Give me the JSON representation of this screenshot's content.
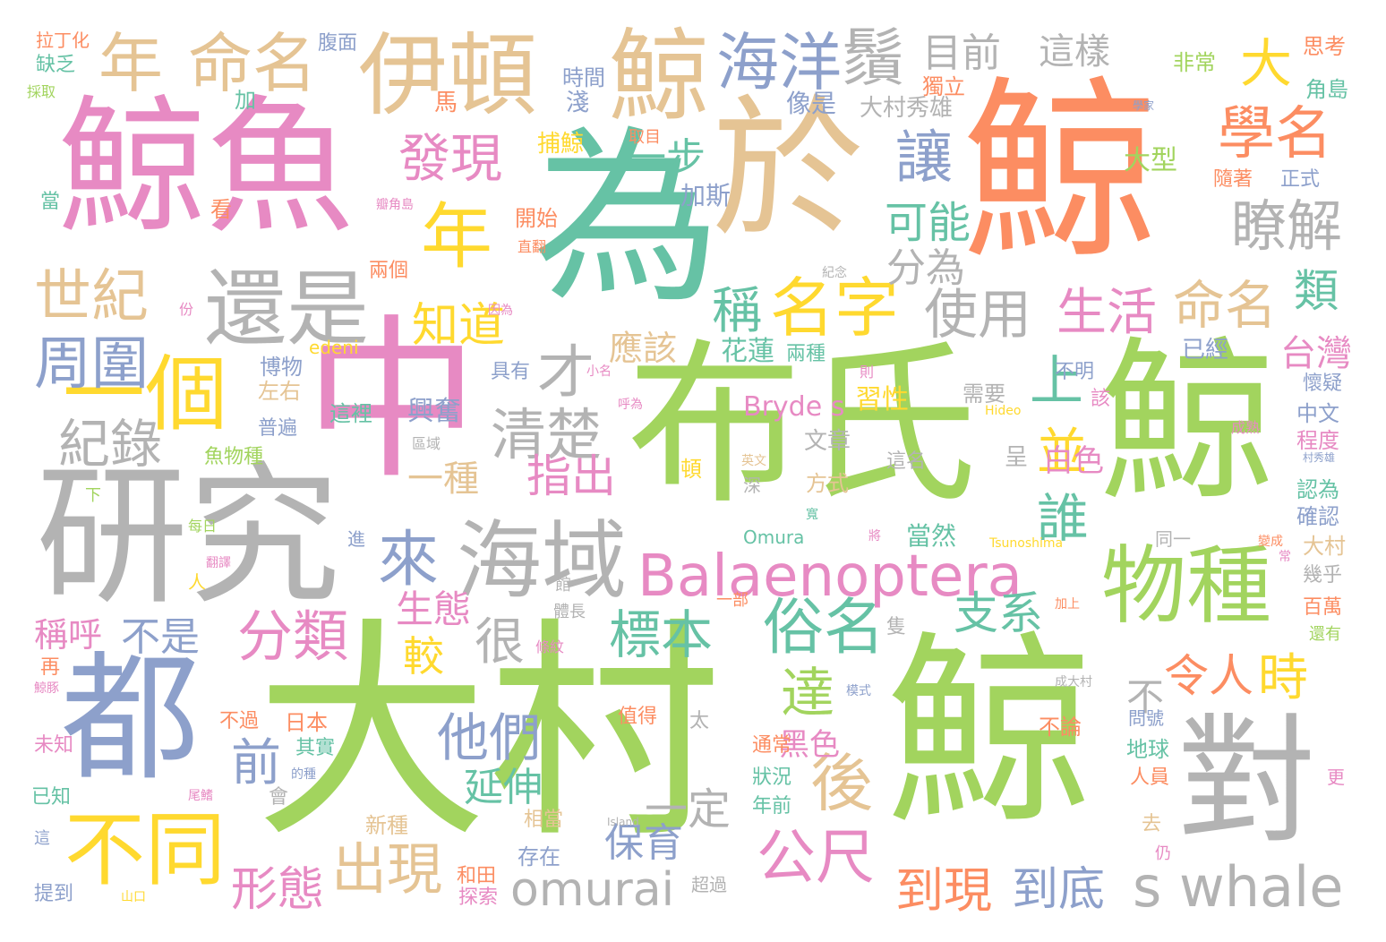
{
  "palette": {
    "green": "#a2d45e",
    "orange": "#fc8d62",
    "pink": "#e78ac3",
    "teal": "#66c2a5",
    "tan": "#e5c494",
    "gray": "#b3b3b3",
    "blue": "#8da0cb",
    "yellow": "#ffd92f"
  },
  "words": [
    {
      "text": "鯨",
      "color": "orange"
    },
    {
      "text": "大村",
      "color": "green"
    },
    {
      "text": "布氏",
      "color": "green"
    },
    {
      "text": "鯨",
      "color": "green"
    },
    {
      "text": "鯨",
      "color": "green"
    },
    {
      "text": "為",
      "color": "teal"
    },
    {
      "text": "於",
      "color": "tan"
    },
    {
      "text": "鯨魚",
      "color": "pink"
    },
    {
      "text": "中",
      "color": "pink"
    },
    {
      "text": "研究",
      "color": "gray"
    },
    {
      "text": "都",
      "color": "blue"
    },
    {
      "text": "對",
      "color": "gray"
    },
    {
      "text": "伊頓",
      "color": "tan"
    },
    {
      "text": "鯨",
      "color": "tan"
    },
    {
      "text": "還是",
      "color": "gray"
    },
    {
      "text": "海域",
      "color": "gray"
    },
    {
      "text": "Balaenoptera",
      "color": "pink"
    },
    {
      "text": "物種",
      "color": "green"
    },
    {
      "text": "s whale",
      "color": "gray"
    },
    {
      "text": "omurai",
      "color": "gray"
    },
    {
      "text": "一個",
      "color": "yellow"
    },
    {
      "text": "不同",
      "color": "yellow"
    },
    {
      "text": "年",
      "color": "yellow"
    },
    {
      "text": "命名",
      "color": "tan"
    },
    {
      "text": "年",
      "color": "tan"
    },
    {
      "text": "海洋",
      "color": "blue"
    },
    {
      "text": "鬚",
      "color": "gray"
    },
    {
      "text": "目前",
      "color": "gray"
    },
    {
      "text": "這樣",
      "color": "gray"
    },
    {
      "text": "大",
      "color": "yellow"
    },
    {
      "text": "學名",
      "color": "orange"
    },
    {
      "text": "發現",
      "color": "pink"
    },
    {
      "text": "讓",
      "color": "blue"
    },
    {
      "text": "瞭解",
      "color": "gray"
    },
    {
      "text": "世紀",
      "color": "tan"
    },
    {
      "text": "名字",
      "color": "yellow"
    },
    {
      "text": "生活",
      "color": "pink"
    },
    {
      "text": "命名",
      "color": "tan"
    },
    {
      "text": "周圍",
      "color": "blue"
    },
    {
      "text": "使用",
      "color": "gray"
    },
    {
      "text": "清楚",
      "color": "gray"
    },
    {
      "text": "紀錄",
      "color": "gray"
    },
    {
      "text": "來",
      "color": "blue"
    },
    {
      "text": "俗名",
      "color": "teal"
    },
    {
      "text": "分類",
      "color": "pink"
    },
    {
      "text": "出現",
      "color": "tan"
    },
    {
      "text": "公尺",
      "color": "pink"
    },
    {
      "text": "後",
      "color": "tan"
    },
    {
      "text": "他們",
      "color": "blue"
    },
    {
      "text": "時",
      "color": "yellow"
    },
    {
      "text": "令人",
      "color": "orange"
    },
    {
      "text": "到現",
      "color": "orange"
    },
    {
      "text": "到底",
      "color": "blue"
    },
    {
      "text": "標本",
      "color": "teal"
    },
    {
      "text": "知道",
      "color": "yellow"
    },
    {
      "text": "稱",
      "color": "teal"
    },
    {
      "text": "可能",
      "color": "teal"
    },
    {
      "text": "分為",
      "color": "gray"
    },
    {
      "text": "一步",
      "color": "teal"
    },
    {
      "text": "類",
      "color": "teal"
    },
    {
      "text": "台灣",
      "color": "pink"
    },
    {
      "text": "支系",
      "color": "teal"
    },
    {
      "text": "誰",
      "color": "teal"
    },
    {
      "text": "並",
      "color": "yellow"
    },
    {
      "text": "上",
      "color": "teal"
    },
    {
      "text": "才",
      "color": "gray"
    },
    {
      "text": "很",
      "color": "gray"
    },
    {
      "text": "應該",
      "color": "tan"
    },
    {
      "text": "指出",
      "color": "pink"
    },
    {
      "text": "一種",
      "color": "tan"
    },
    {
      "text": "不是",
      "color": "blue"
    },
    {
      "text": "前",
      "color": "blue"
    },
    {
      "text": "形態",
      "color": "pink"
    },
    {
      "text": "生態",
      "color": "pink"
    },
    {
      "text": "較",
      "color": "yellow"
    },
    {
      "text": "延伸",
      "color": "teal"
    },
    {
      "text": "保育",
      "color": "blue"
    },
    {
      "text": "一定",
      "color": "gray"
    },
    {
      "text": "達",
      "color": "green"
    },
    {
      "text": "稱呼",
      "color": "pink"
    },
    {
      "text": "黑色",
      "color": "pink"
    },
    {
      "text": "不",
      "color": "gray"
    },
    {
      "text": "Bryde s",
      "color": "pink"
    },
    {
      "text": "加斯",
      "color": "blue"
    },
    {
      "text": "大型",
      "color": "green"
    },
    {
      "text": "花蓮",
      "color": "teal"
    },
    {
      "text": "白色",
      "color": "pink"
    },
    {
      "text": "習性",
      "color": "yellow"
    },
    {
      "text": "興奮",
      "color": "blue"
    },
    {
      "text": "拉丁化",
      "color": "orange"
    },
    {
      "text": "缺乏",
      "color": "teal"
    },
    {
      "text": "採取",
      "color": "green"
    },
    {
      "text": "腹面",
      "color": "blue"
    },
    {
      "text": "時間",
      "color": "blue"
    },
    {
      "text": "淺",
      "color": "blue"
    },
    {
      "text": "加",
      "color": "teal"
    },
    {
      "text": "馬",
      "color": "orange"
    },
    {
      "text": "像是",
      "color": "blue"
    },
    {
      "text": "大村秀雄",
      "color": "gray"
    },
    {
      "text": "獨立",
      "color": "orange"
    },
    {
      "text": "非常",
      "color": "green"
    },
    {
      "text": "思考",
      "color": "orange"
    },
    {
      "text": "角島",
      "color": "teal"
    },
    {
      "text": "學家",
      "color": "blue"
    },
    {
      "text": "捕鯨",
      "color": "yellow"
    },
    {
      "text": "取目",
      "color": "orange"
    },
    {
      "text": "隨著",
      "color": "orange"
    },
    {
      "text": "正式",
      "color": "blue"
    },
    {
      "text": "當",
      "color": "teal"
    },
    {
      "text": "看",
      "color": "orange"
    },
    {
      "text": "瓣角島",
      "color": "pink"
    },
    {
      "text": "開始",
      "color": "orange"
    },
    {
      "text": "直翻",
      "color": "orange"
    },
    {
      "text": "兩個",
      "color": "orange"
    },
    {
      "text": "紀念",
      "color": "gray"
    },
    {
      "text": "份",
      "color": "pink"
    },
    {
      "text": "因為",
      "color": "pink"
    },
    {
      "text": "edeni",
      "color": "yellow"
    },
    {
      "text": "已經",
      "color": "blue"
    },
    {
      "text": "博物",
      "color": "blue"
    },
    {
      "text": "左右",
      "color": "tan"
    },
    {
      "text": "小名",
      "color": "pink"
    },
    {
      "text": "具有",
      "color": "blue"
    },
    {
      "text": "兩種",
      "color": "teal"
    },
    {
      "text": "不明",
      "color": "blue"
    },
    {
      "text": "則",
      "color": "pink"
    },
    {
      "text": "懷疑",
      "color": "blue"
    },
    {
      "text": "這裡",
      "color": "teal"
    },
    {
      "text": "普遍",
      "color": "blue"
    },
    {
      "text": "呼為",
      "color": "pink"
    },
    {
      "text": "需要",
      "color": "gray"
    },
    {
      "text": "該",
      "color": "pink"
    },
    {
      "text": "Hideo",
      "color": "yellow"
    },
    {
      "text": "中文",
      "color": "blue"
    },
    {
      "text": "程度",
      "color": "pink"
    },
    {
      "text": "成熟",
      "color": "pink"
    },
    {
      "text": "村秀雄",
      "color": "blue"
    },
    {
      "text": "魚物種",
      "color": "green"
    },
    {
      "text": "區域",
      "color": "gray"
    },
    {
      "text": "頓",
      "color": "yellow"
    },
    {
      "text": "英文",
      "color": "tan"
    },
    {
      "text": "文章",
      "color": "gray"
    },
    {
      "text": "呈",
      "color": "gray"
    },
    {
      "text": "這名",
      "color": "gray"
    },
    {
      "text": "下",
      "color": "green"
    },
    {
      "text": "深",
      "color": "gray"
    },
    {
      "text": "方式",
      "color": "tan"
    },
    {
      "text": "寬",
      "color": "teal"
    },
    {
      "text": "認為",
      "color": "teal"
    },
    {
      "text": "確認",
      "color": "blue"
    },
    {
      "text": "每日",
      "color": "green"
    },
    {
      "text": "進",
      "color": "blue"
    },
    {
      "text": "Omura",
      "color": "teal"
    },
    {
      "text": "將",
      "color": "pink"
    },
    {
      "text": "當然",
      "color": "teal"
    },
    {
      "text": "Tsunoshima",
      "color": "yellow"
    },
    {
      "text": "變成",
      "color": "orange"
    },
    {
      "text": "同一",
      "color": "gray"
    },
    {
      "text": "常",
      "color": "pink"
    },
    {
      "text": "大村",
      "color": "tan"
    },
    {
      "text": "幾乎",
      "color": "gray"
    },
    {
      "text": "翻譯",
      "color": "pink"
    },
    {
      "text": "人",
      "color": "yellow"
    },
    {
      "text": "館",
      "color": "gray"
    },
    {
      "text": "一部",
      "color": "orange"
    },
    {
      "text": "體長",
      "color": "gray"
    },
    {
      "text": "隻",
      "color": "gray"
    },
    {
      "text": "加上",
      "color": "orange"
    },
    {
      "text": "百萬",
      "color": "orange"
    },
    {
      "text": "還有",
      "color": "green"
    },
    {
      "text": "再",
      "color": "orange"
    },
    {
      "text": "條紋",
      "color": "pink"
    },
    {
      "text": "鯨豚",
      "color": "pink"
    },
    {
      "text": "模式",
      "color": "blue"
    },
    {
      "text": "成大村",
      "color": "gray"
    },
    {
      "text": "不過",
      "color": "orange"
    },
    {
      "text": "日本",
      "color": "orange"
    },
    {
      "text": "值得",
      "color": "orange"
    },
    {
      "text": "太",
      "color": "gray"
    },
    {
      "text": "不論",
      "color": "orange"
    },
    {
      "text": "問號",
      "color": "blue"
    },
    {
      "text": "通常",
      "color": "orange"
    },
    {
      "text": "未知",
      "color": "pink"
    },
    {
      "text": "其實",
      "color": "teal"
    },
    {
      "text": "的種",
      "color": "blue"
    },
    {
      "text": "狀況",
      "color": "teal"
    },
    {
      "text": "地球",
      "color": "teal"
    },
    {
      "text": "更",
      "color": "pink"
    },
    {
      "text": "已知",
      "color": "teal"
    },
    {
      "text": "尾鰭",
      "color": "pink"
    },
    {
      "text": "會",
      "color": "gray"
    },
    {
      "text": "年前",
      "color": "teal"
    },
    {
      "text": "人員",
      "color": "orange"
    },
    {
      "text": "新種",
      "color": "tan"
    },
    {
      "text": "相當",
      "color": "tan"
    },
    {
      "text": "Island",
      "color": "gray"
    },
    {
      "text": "去",
      "color": "tan"
    },
    {
      "text": "這",
      "color": "blue"
    },
    {
      "text": "存在",
      "color": "blue"
    },
    {
      "text": "仍",
      "color": "pink"
    },
    {
      "text": "提到",
      "color": "blue"
    },
    {
      "text": "山口",
      "color": "yellow"
    },
    {
      "text": "和田",
      "color": "orange"
    },
    {
      "text": "超過",
      "color": "gray"
    },
    {
      "text": "探索",
      "color": "pink"
    }
  ]
}
